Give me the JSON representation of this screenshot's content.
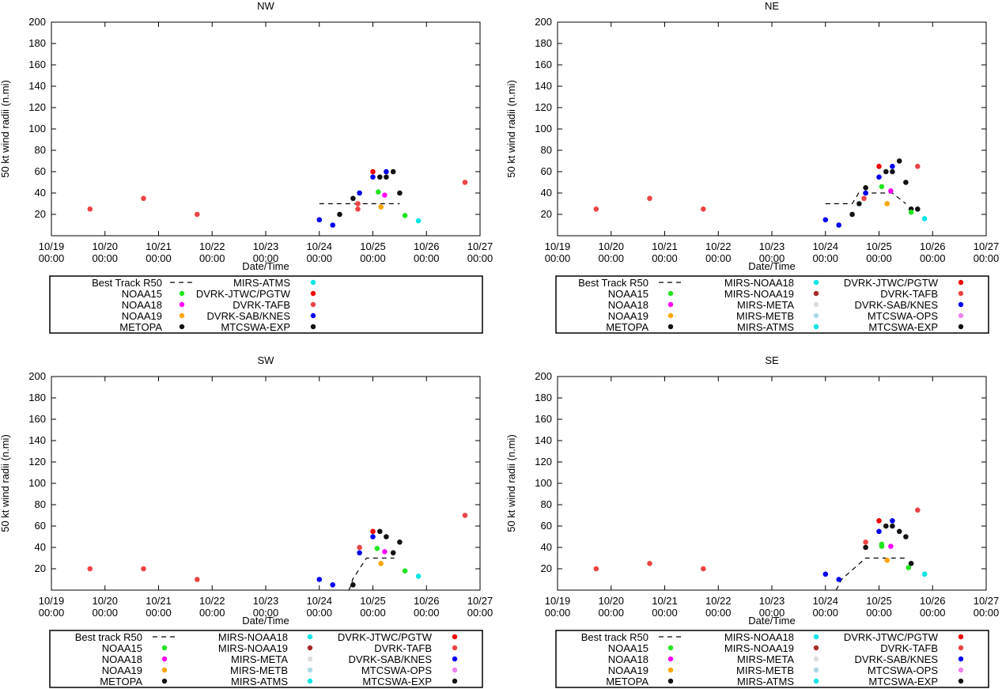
{
  "colors": {
    "best_track": "#000000",
    "NOAA15": "#22e622",
    "NOAA18": "#ff00ff",
    "NOAA19": "#ffa500",
    "METOPA": "#111111",
    "MIRS-ATMS": "#00e5e5",
    "MIRS-NOAA18": "#00e5e5",
    "MIRS-NOAA19": "#a52a2a",
    "MIRS-META": "#dddddd",
    "MIRS-METB": "#add8e6",
    "DVRK-JTWC/PGTW": "#ee0000",
    "DVRK-TAFB": "#ee4444",
    "DVRK-SAB/KNES": "#0000ee",
    "MTCSWA-OPS": "#ee82ee",
    "MTCSWA-EXP": "#111111"
  },
  "chart_data": [
    {
      "type": "scatter",
      "title": "NW",
      "xlabel": "Date/Time",
      "ylabel": "50 kt wind radii (n.mi)",
      "ylim": [
        0,
        200
      ],
      "yticks": [
        "200",
        "180",
        "160",
        "140",
        "120",
        "100",
        "80",
        "60",
        "40",
        "20"
      ],
      "xtick_dates": [
        "10/19",
        "10/20",
        "10/21",
        "10/22",
        "10/23",
        "10/24",
        "10/25",
        "10/26",
        "10/27"
      ],
      "xtick_times": [
        "00:00",
        "00:00",
        "00:00",
        "00:00",
        "00:00",
        "00:00",
        "00:00",
        "00:00",
        "00:00"
      ],
      "best_track": [
        [
          5.0,
          30
        ],
        [
          6.5,
          30
        ]
      ],
      "series": [
        {
          "key": "DVRK-TAFB",
          "points": [
            [
              0.72,
              25
            ],
            [
              1.72,
              35
            ],
            [
              2.72,
              20
            ],
            [
              5.72,
              30
            ],
            [
              5.72,
              25
            ],
            [
              7.72,
              50
            ]
          ]
        },
        {
          "key": "DVRK-JTWC/PGTW",
          "points": [
            [
              6.0,
              60
            ]
          ]
        },
        {
          "key": "DVRK-SAB/KNES",
          "points": [
            [
              5.0,
              15
            ],
            [
              5.25,
              10
            ],
            [
              5.75,
              40
            ],
            [
              6.0,
              55
            ],
            [
              6.25,
              60
            ]
          ]
        },
        {
          "key": "MTCSWA-EXP",
          "points": [
            [
              5.38,
              20
            ],
            [
              5.63,
              35
            ],
            [
              6.13,
              55
            ],
            [
              6.25,
              55
            ],
            [
              6.38,
              60
            ],
            [
              6.5,
              40
            ]
          ]
        },
        {
          "key": "NOAA15",
          "points": [
            [
              6.1,
              41
            ],
            [
              6.6,
              19
            ]
          ]
        },
        {
          "key": "NOAA18",
          "points": [
            [
              6.22,
              38
            ]
          ]
        },
        {
          "key": "NOAA19",
          "points": [
            [
              6.15,
              27
            ]
          ]
        },
        {
          "key": "MIRS-ATMS",
          "points": [
            [
              6.85,
              14
            ]
          ]
        }
      ],
      "legend": {
        "columns": [
          [
            {
              "label": "Best Track R50",
              "key": "best_track",
              "style": "line"
            },
            {
              "label": "NOAA15",
              "key": "NOAA15"
            },
            {
              "label": "NOAA18",
              "key": "NOAA18"
            },
            {
              "label": "NOAA19",
              "key": "NOAA19"
            },
            {
              "label": "METOPA",
              "key": "METOPA"
            }
          ],
          [
            {
              "label": "MIRS-ATMS",
              "key": "MIRS-ATMS"
            },
            {
              "label": "DVRK-JTWC/PGTW",
              "key": "DVRK-JTWC/PGTW"
            },
            {
              "label": "DVRK-TAFB",
              "key": "DVRK-TAFB"
            },
            {
              "label": "DVRK-SAB/KNES",
              "key": "DVRK-SAB/KNES"
            },
            {
              "label": "MTCSWA-EXP",
              "key": "MTCSWA-EXP"
            }
          ]
        ]
      }
    },
    {
      "type": "scatter",
      "title": "NE",
      "xlabel": "Date/Time",
      "ylabel": "50 kt wind radii (n.mi)",
      "ylim": [
        0,
        200
      ],
      "yticks": [
        "200",
        "180",
        "160",
        "140",
        "120",
        "100",
        "80",
        "60",
        "40",
        "20"
      ],
      "xtick_dates": [
        "10/19",
        "10/20",
        "10/21",
        "10/22",
        "10/23",
        "10/24",
        "10/25",
        "10/26",
        "10/27"
      ],
      "xtick_times": [
        "00:00",
        "00:00",
        "00:00",
        "00:00",
        "00:00",
        "00:00",
        "00:00",
        "00:00",
        "00:00"
      ],
      "best_track": [
        [
          5.0,
          30
        ],
        [
          5.5,
          30
        ],
        [
          5.62,
          40
        ],
        [
          6.25,
          40
        ],
        [
          6.5,
          30
        ]
      ],
      "series": [
        {
          "key": "DVRK-TAFB",
          "points": [
            [
              0.72,
              25
            ],
            [
              1.72,
              35
            ],
            [
              2.72,
              25
            ],
            [
              5.72,
              35
            ],
            [
              6.72,
              65
            ]
          ]
        },
        {
          "key": "DVRK-JTWC/PGTW",
          "points": [
            [
              6.0,
              65
            ]
          ]
        },
        {
          "key": "DVRK-SAB/KNES",
          "points": [
            [
              5.0,
              15
            ],
            [
              5.25,
              10
            ],
            [
              5.75,
              40
            ],
            [
              6.0,
              55
            ],
            [
              6.25,
              65
            ]
          ]
        },
        {
          "key": "MTCSWA-EXP",
          "points": [
            [
              5.5,
              20
            ],
            [
              5.63,
              30
            ],
            [
              5.75,
              45
            ],
            [
              6.13,
              60
            ],
            [
              6.25,
              60
            ],
            [
              6.38,
              70
            ],
            [
              6.5,
              50
            ],
            [
              6.6,
              25
            ],
            [
              6.72,
              25
            ]
          ]
        },
        {
          "key": "NOAA15",
          "points": [
            [
              6.05,
              46
            ],
            [
              6.6,
              22
            ]
          ]
        },
        {
          "key": "NOAA18",
          "points": [
            [
              6.22,
              42
            ]
          ]
        },
        {
          "key": "NOAA19",
          "points": [
            [
              6.15,
              30
            ]
          ]
        },
        {
          "key": "MIRS-ATMS",
          "points": [
            [
              6.85,
              16
            ]
          ]
        }
      ],
      "legend": {
        "columns": [
          [
            {
              "label": "Best Track R50",
              "key": "best_track",
              "style": "line"
            },
            {
              "label": "NOAA15",
              "key": "NOAA15"
            },
            {
              "label": "NOAA18",
              "key": "NOAA18"
            },
            {
              "label": "NOAA19",
              "key": "NOAA19"
            },
            {
              "label": "METOPA",
              "key": "METOPA"
            }
          ],
          [
            {
              "label": "MIRS-NOAA18",
              "key": "MIRS-NOAA18"
            },
            {
              "label": "MIRS-NOAA19",
              "key": "MIRS-NOAA19"
            },
            {
              "label": "MIRS-META",
              "key": "MIRS-META"
            },
            {
              "label": "MIRS-METB",
              "key": "MIRS-METB"
            },
            {
              "label": "MIRS-ATMS",
              "key": "MIRS-ATMS"
            }
          ],
          [
            {
              "label": "DVRK-JTWC/PGTW",
              "key": "DVRK-JTWC/PGTW"
            },
            {
              "label": "DVRK-TAFB",
              "key": "DVRK-TAFB"
            },
            {
              "label": "DVRK-SAB/KNES",
              "key": "DVRK-SAB/KNES"
            },
            {
              "label": "MTCSWA-OPS",
              "key": "MTCSWA-OPS"
            },
            {
              "label": "MTCSWA-EXP",
              "key": "MTCSWA-EXP"
            }
          ]
        ]
      }
    },
    {
      "type": "scatter",
      "title": "SW",
      "xlabel": "Date/Time",
      "ylabel": "50 kt wind radii (n.mi)",
      "ylim": [
        0,
        200
      ],
      "yticks": [
        "200",
        "180",
        "160",
        "140",
        "120",
        "100",
        "80",
        "60",
        "40",
        "20"
      ],
      "xtick_dates": [
        "10/19",
        "10/20",
        "10/21",
        "10/22",
        "10/23",
        "10/24",
        "10/25",
        "10/26",
        "10/27"
      ],
      "xtick_times": [
        "00:00",
        "00:00",
        "00:00",
        "00:00",
        "00:00",
        "00:00",
        "00:00",
        "00:00",
        "00:00"
      ],
      "best_track": [
        [
          5.55,
          0
        ],
        [
          5.6,
          5
        ],
        [
          5.62,
          10
        ],
        [
          5.88,
          30
        ],
        [
          6.4,
          30
        ]
      ],
      "series": [
        {
          "key": "DVRK-TAFB",
          "points": [
            [
              0.72,
              20
            ],
            [
              1.72,
              20
            ],
            [
              2.72,
              10
            ],
            [
              5.75,
              40
            ],
            [
              7.72,
              70
            ]
          ]
        },
        {
          "key": "DVRK-JTWC/PGTW",
          "points": [
            [
              6.0,
              55
            ]
          ]
        },
        {
          "key": "DVRK-SAB/KNES",
          "points": [
            [
              5.0,
              10
            ],
            [
              5.25,
              5
            ],
            [
              5.75,
              35
            ],
            [
              6.0,
              50
            ]
          ]
        },
        {
          "key": "MTCSWA-EXP",
          "points": [
            [
              5.63,
              5
            ],
            [
              6.13,
              55
            ],
            [
              6.25,
              50
            ],
            [
              6.38,
              35
            ],
            [
              6.5,
              45
            ]
          ]
        },
        {
          "key": "NOAA15",
          "points": [
            [
              6.08,
              39
            ],
            [
              6.6,
              18
            ]
          ]
        },
        {
          "key": "NOAA18",
          "points": [
            [
              6.22,
              36
            ]
          ]
        },
        {
          "key": "NOAA19",
          "points": [
            [
              6.15,
              25
            ]
          ]
        },
        {
          "key": "MIRS-ATMS",
          "points": [
            [
              6.85,
              13
            ]
          ]
        }
      ],
      "legend": {
        "columns": [
          [
            {
              "label": "Best track R50",
              "key": "best_track",
              "style": "line"
            },
            {
              "label": "NOAA15",
              "key": "NOAA15"
            },
            {
              "label": "NOAA18",
              "key": "NOAA18"
            },
            {
              "label": "NOAA19",
              "key": "NOAA19"
            },
            {
              "label": "METOPA",
              "key": "METOPA"
            }
          ],
          [
            {
              "label": "MIRS-NOAA18",
              "key": "MIRS-NOAA18"
            },
            {
              "label": "MIRS-NOAA19",
              "key": "MIRS-NOAA19"
            },
            {
              "label": "MIRS-META",
              "key": "MIRS-META"
            },
            {
              "label": "MIRS-METB",
              "key": "MIRS-METB"
            },
            {
              "label": "MIRS-ATMS",
              "key": "MIRS-ATMS"
            }
          ],
          [
            {
              "label": "DVRK-JTWC/PGTW",
              "key": "DVRK-JTWC/PGTW"
            },
            {
              "label": "DVRK-TAFB",
              "key": "DVRK-TAFB"
            },
            {
              "label": "DVRK-SAB/KNES",
              "key": "DVRK-SAB/KNES"
            },
            {
              "label": "MTCSWA-OPS",
              "key": "MTCSWA-OPS"
            },
            {
              "label": "MTCSWA-EXP",
              "key": "MTCSWA-EXP"
            }
          ]
        ]
      }
    },
    {
      "type": "scatter",
      "title": "SE",
      "xlabel": "Date/Time",
      "ylabel": "50 kt wind radii (n.mi)",
      "ylim": [
        0,
        200
      ],
      "yticks": [
        "200",
        "180",
        "160",
        "140",
        "120",
        "100",
        "80",
        "60",
        "40",
        "20"
      ],
      "xtick_dates": [
        "10/19",
        "10/20",
        "10/21",
        "10/22",
        "10/23",
        "10/24",
        "10/25",
        "10/26",
        "10/27"
      ],
      "xtick_times": [
        "00:00",
        "00:00",
        "00:00",
        "00:00",
        "00:00",
        "00:00",
        "00:00",
        "00:00",
        "00:00"
      ],
      "best_track": [
        [
          5.2,
          0
        ],
        [
          5.25,
          5
        ],
        [
          5.3,
          10
        ],
        [
          5.75,
          30
        ],
        [
          6.5,
          30
        ]
      ],
      "series": [
        {
          "key": "DVRK-TAFB",
          "points": [
            [
              0.72,
              20
            ],
            [
              1.72,
              25
            ],
            [
              2.72,
              20
            ],
            [
              5.75,
              45
            ],
            [
              6.72,
              75
            ]
          ]
        },
        {
          "key": "DVRK-JTWC/PGTW",
          "points": [
            [
              6.0,
              65
            ]
          ]
        },
        {
          "key": "DVRK-SAB/KNES",
          "points": [
            [
              5.0,
              15
            ],
            [
              5.25,
              10
            ],
            [
              6.0,
              55
            ],
            [
              6.25,
              65
            ]
          ]
        },
        {
          "key": "MTCSWA-EXP",
          "points": [
            [
              5.75,
              40
            ],
            [
              6.13,
              60
            ],
            [
              6.25,
              60
            ],
            [
              6.38,
              55
            ],
            [
              6.5,
              50
            ],
            [
              6.6,
              25
            ]
          ]
        },
        {
          "key": "NOAA15",
          "points": [
            [
              6.05,
              43
            ],
            [
              6.05,
              41
            ],
            [
              6.55,
              21
            ]
          ]
        },
        {
          "key": "NOAA18",
          "points": [
            [
              6.22,
              41
            ]
          ]
        },
        {
          "key": "NOAA19",
          "points": [
            [
              6.15,
              28
            ]
          ]
        },
        {
          "key": "MIRS-ATMS",
          "points": [
            [
              6.85,
              15
            ]
          ]
        }
      ],
      "legend": {
        "columns": [
          [
            {
              "label": "Best track R50",
              "key": "best_track",
              "style": "line"
            },
            {
              "label": "NOAA15",
              "key": "NOAA15"
            },
            {
              "label": "NOAA18",
              "key": "NOAA18"
            },
            {
              "label": "NOAA19",
              "key": "NOAA19"
            },
            {
              "label": "METOPA",
              "key": "METOPA"
            }
          ],
          [
            {
              "label": "MIRS-NOAA18",
              "key": "MIRS-NOAA18"
            },
            {
              "label": "MIRS-NOAA19",
              "key": "MIRS-NOAA19"
            },
            {
              "label": "MIRS-META",
              "key": "MIRS-META"
            },
            {
              "label": "MIRS-METB",
              "key": "MIRS-METB"
            },
            {
              "label": "MIRS-ATMS",
              "key": "MIRS-ATMS"
            }
          ],
          [
            {
              "label": "DVRK-JTWC/PGTW",
              "key": "DVRK-JTWC/PGTW"
            },
            {
              "label": "DVRK-TAFB",
              "key": "DVRK-TAFB"
            },
            {
              "label": "DVRK-SAB/KNES",
              "key": "DVRK-SAB/KNES"
            },
            {
              "label": "MTCSWA-OPS",
              "key": "MTCSWA-OPS"
            },
            {
              "label": "MTCSWA-EXP",
              "key": "MTCSWA-EXP"
            }
          ]
        ]
      }
    }
  ]
}
